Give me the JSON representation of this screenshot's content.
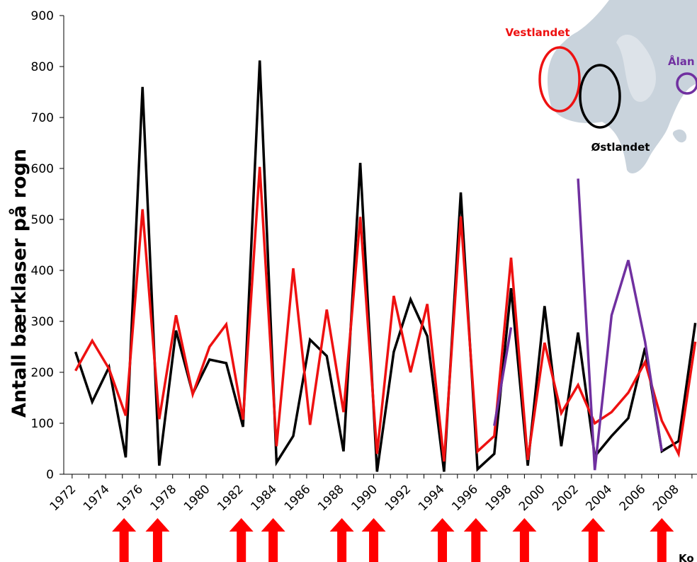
{
  "chart_data": {
    "type": "line",
    "ylabel": "Antall bærklaser på rogn",
    "ylim": [
      0,
      900
    ],
    "yticks": [
      0,
      100,
      200,
      300,
      400,
      500,
      600,
      700,
      800,
      900
    ],
    "ytick_labels": [
      "0",
      "100",
      "200",
      "300",
      "400",
      "500",
      "600",
      "700",
      "800",
      "900"
    ],
    "xlim": [
      1971.5,
      2009.3
    ],
    "xticks": [
      1972,
      1974,
      1976,
      1978,
      1980,
      1982,
      1984,
      1986,
      1988,
      1990,
      1992,
      1994,
      1996,
      1998,
      2000,
      2002,
      2004,
      2006,
      2008
    ],
    "xtick_labels": [
      "1972",
      "1974",
      "1976",
      "1978",
      "1980",
      "1982",
      "1984",
      "1986",
      "1988",
      "1990",
      "1992",
      "1994",
      "1996",
      "1998",
      "2000",
      "2002",
      "2004",
      "2006",
      "2008"
    ],
    "grid": false,
    "series": [
      {
        "name": "Østlandet",
        "color": "#000000",
        "points": [
          [
            1972.2,
            240
          ],
          [
            1973.2,
            142
          ],
          [
            1974.2,
            210
          ],
          [
            1975.2,
            33
          ],
          [
            1976.2,
            760
          ],
          [
            1977.2,
            17
          ],
          [
            1978.2,
            282
          ],
          [
            1979.2,
            158
          ],
          [
            1980.2,
            225
          ],
          [
            1981.2,
            218
          ],
          [
            1982.2,
            93
          ],
          [
            1983.2,
            812
          ],
          [
            1984.2,
            23
          ],
          [
            1985.2,
            75
          ],
          [
            1986.2,
            264
          ],
          [
            1987.2,
            232
          ],
          [
            1988.2,
            45
          ],
          [
            1989.2,
            611
          ],
          [
            1990.2,
            5
          ],
          [
            1991.2,
            240
          ],
          [
            1992.2,
            343
          ],
          [
            1993.2,
            271
          ],
          [
            1994.2,
            5
          ],
          [
            1995.2,
            553
          ],
          [
            1996.2,
            10
          ],
          [
            1997.2,
            40
          ],
          [
            1998.2,
            365
          ],
          [
            1999.2,
            17
          ],
          [
            2000.2,
            330
          ],
          [
            2001.2,
            55
          ],
          [
            2002.2,
            278
          ],
          [
            2003.2,
            35
          ],
          [
            2004.2,
            75
          ],
          [
            2005.2,
            110
          ],
          [
            2006.2,
            248
          ],
          [
            2007.2,
            45
          ],
          [
            2008.2,
            65
          ],
          [
            2009.2,
            297
          ]
        ]
      },
      {
        "name": "Vestlandet",
        "color": "#ee1111",
        "points": [
          [
            1972.2,
            203
          ],
          [
            1973.2,
            262
          ],
          [
            1974.2,
            207
          ],
          [
            1975.2,
            115
          ],
          [
            1976.2,
            520
          ],
          [
            1977.2,
            108
          ],
          [
            1978.2,
            312
          ],
          [
            1979.2,
            157
          ],
          [
            1980.2,
            250
          ],
          [
            1981.2,
            294
          ],
          [
            1982.2,
            107
          ],
          [
            1983.2,
            603
          ],
          [
            1984.2,
            55
          ],
          [
            1985.2,
            404
          ],
          [
            1986.2,
            97
          ],
          [
            1987.2,
            323
          ],
          [
            1988.2,
            122
          ],
          [
            1989.2,
            505
          ],
          [
            1990.2,
            40
          ],
          [
            1991.2,
            350
          ],
          [
            1992.2,
            200
          ],
          [
            1993.2,
            334
          ],
          [
            1994.2,
            25
          ],
          [
            1995.2,
            506
          ],
          [
            1996.2,
            45
          ],
          [
            1997.2,
            75
          ],
          [
            1998.2,
            425
          ],
          [
            1999.2,
            28
          ],
          [
            2000.2,
            258
          ],
          [
            2001.2,
            120
          ],
          [
            2002.2,
            175
          ],
          [
            2003.2,
            100
          ],
          [
            2004.2,
            122
          ],
          [
            2005.2,
            160
          ],
          [
            2006.2,
            220
          ],
          [
            2007.2,
            105
          ],
          [
            2008.2,
            40
          ],
          [
            2009.2,
            260
          ]
        ]
      },
      {
        "name": "Åland",
        "color": "#7030a0",
        "points": [
          [
            1997.2,
            95
          ],
          [
            1998.2,
            288
          ]
        ]
      },
      {
        "name": "Åland",
        "color": "#7030a0",
        "points": [
          [
            2002.2,
            580
          ],
          [
            2003.2,
            8
          ],
          [
            2004.2,
            312
          ],
          [
            2005.2,
            420
          ],
          [
            2006.2,
            260
          ],
          [
            2007.2,
            45
          ]
        ]
      }
    ],
    "arrow_years": [
      1975.1,
      1977.1,
      1982.1,
      1984.0,
      1988.1,
      1990.0,
      1994.1,
      1996.1,
      1999.0,
      2003.1,
      2007.2
    ],
    "arrow_color": "#ff0000"
  },
  "map": {
    "label_vestlandet": "Vestlandet",
    "label_ostlandet": "Østlandet",
    "label_aland": "Ålan",
    "color_vestlandet": "#ee1111",
    "color_ostlandet": "#000000",
    "color_aland": "#7030a0",
    "land_color": "#c9d3dc"
  },
  "footer_fragment": "Ko"
}
